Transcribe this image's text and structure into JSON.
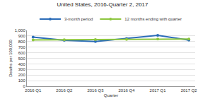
{
  "chart_data": {
    "type": "line",
    "title": "United States, 2016-Quarter 2, 2017",
    "x_label": "Quarter",
    "y_label": "Deaths per 100,000",
    "categories": [
      "2016 Q1",
      "2016 Q2",
      "2016 Q3",
      "2016 Q4",
      "2017 Q1",
      "2017 Q2"
    ],
    "series": [
      {
        "name": "3-month period",
        "color": "#2b6cb8",
        "marker": "circle",
        "values": [
          880,
          822,
          800,
          855,
          912,
          825
        ]
      },
      {
        "name": "12 months ending with quarter",
        "color": "#8dc63f",
        "marker": "circle",
        "values": [
          830,
          832,
          835,
          838,
          845,
          845
        ]
      }
    ],
    "ylim": [
      0,
      1000
    ],
    "yticks": [
      0,
      100,
      200,
      300,
      400,
      500,
      600,
      700,
      800,
      900,
      {
        "value": 1000,
        "label": "1,000"
      }
    ],
    "grid": true,
    "legend": "top"
  }
}
